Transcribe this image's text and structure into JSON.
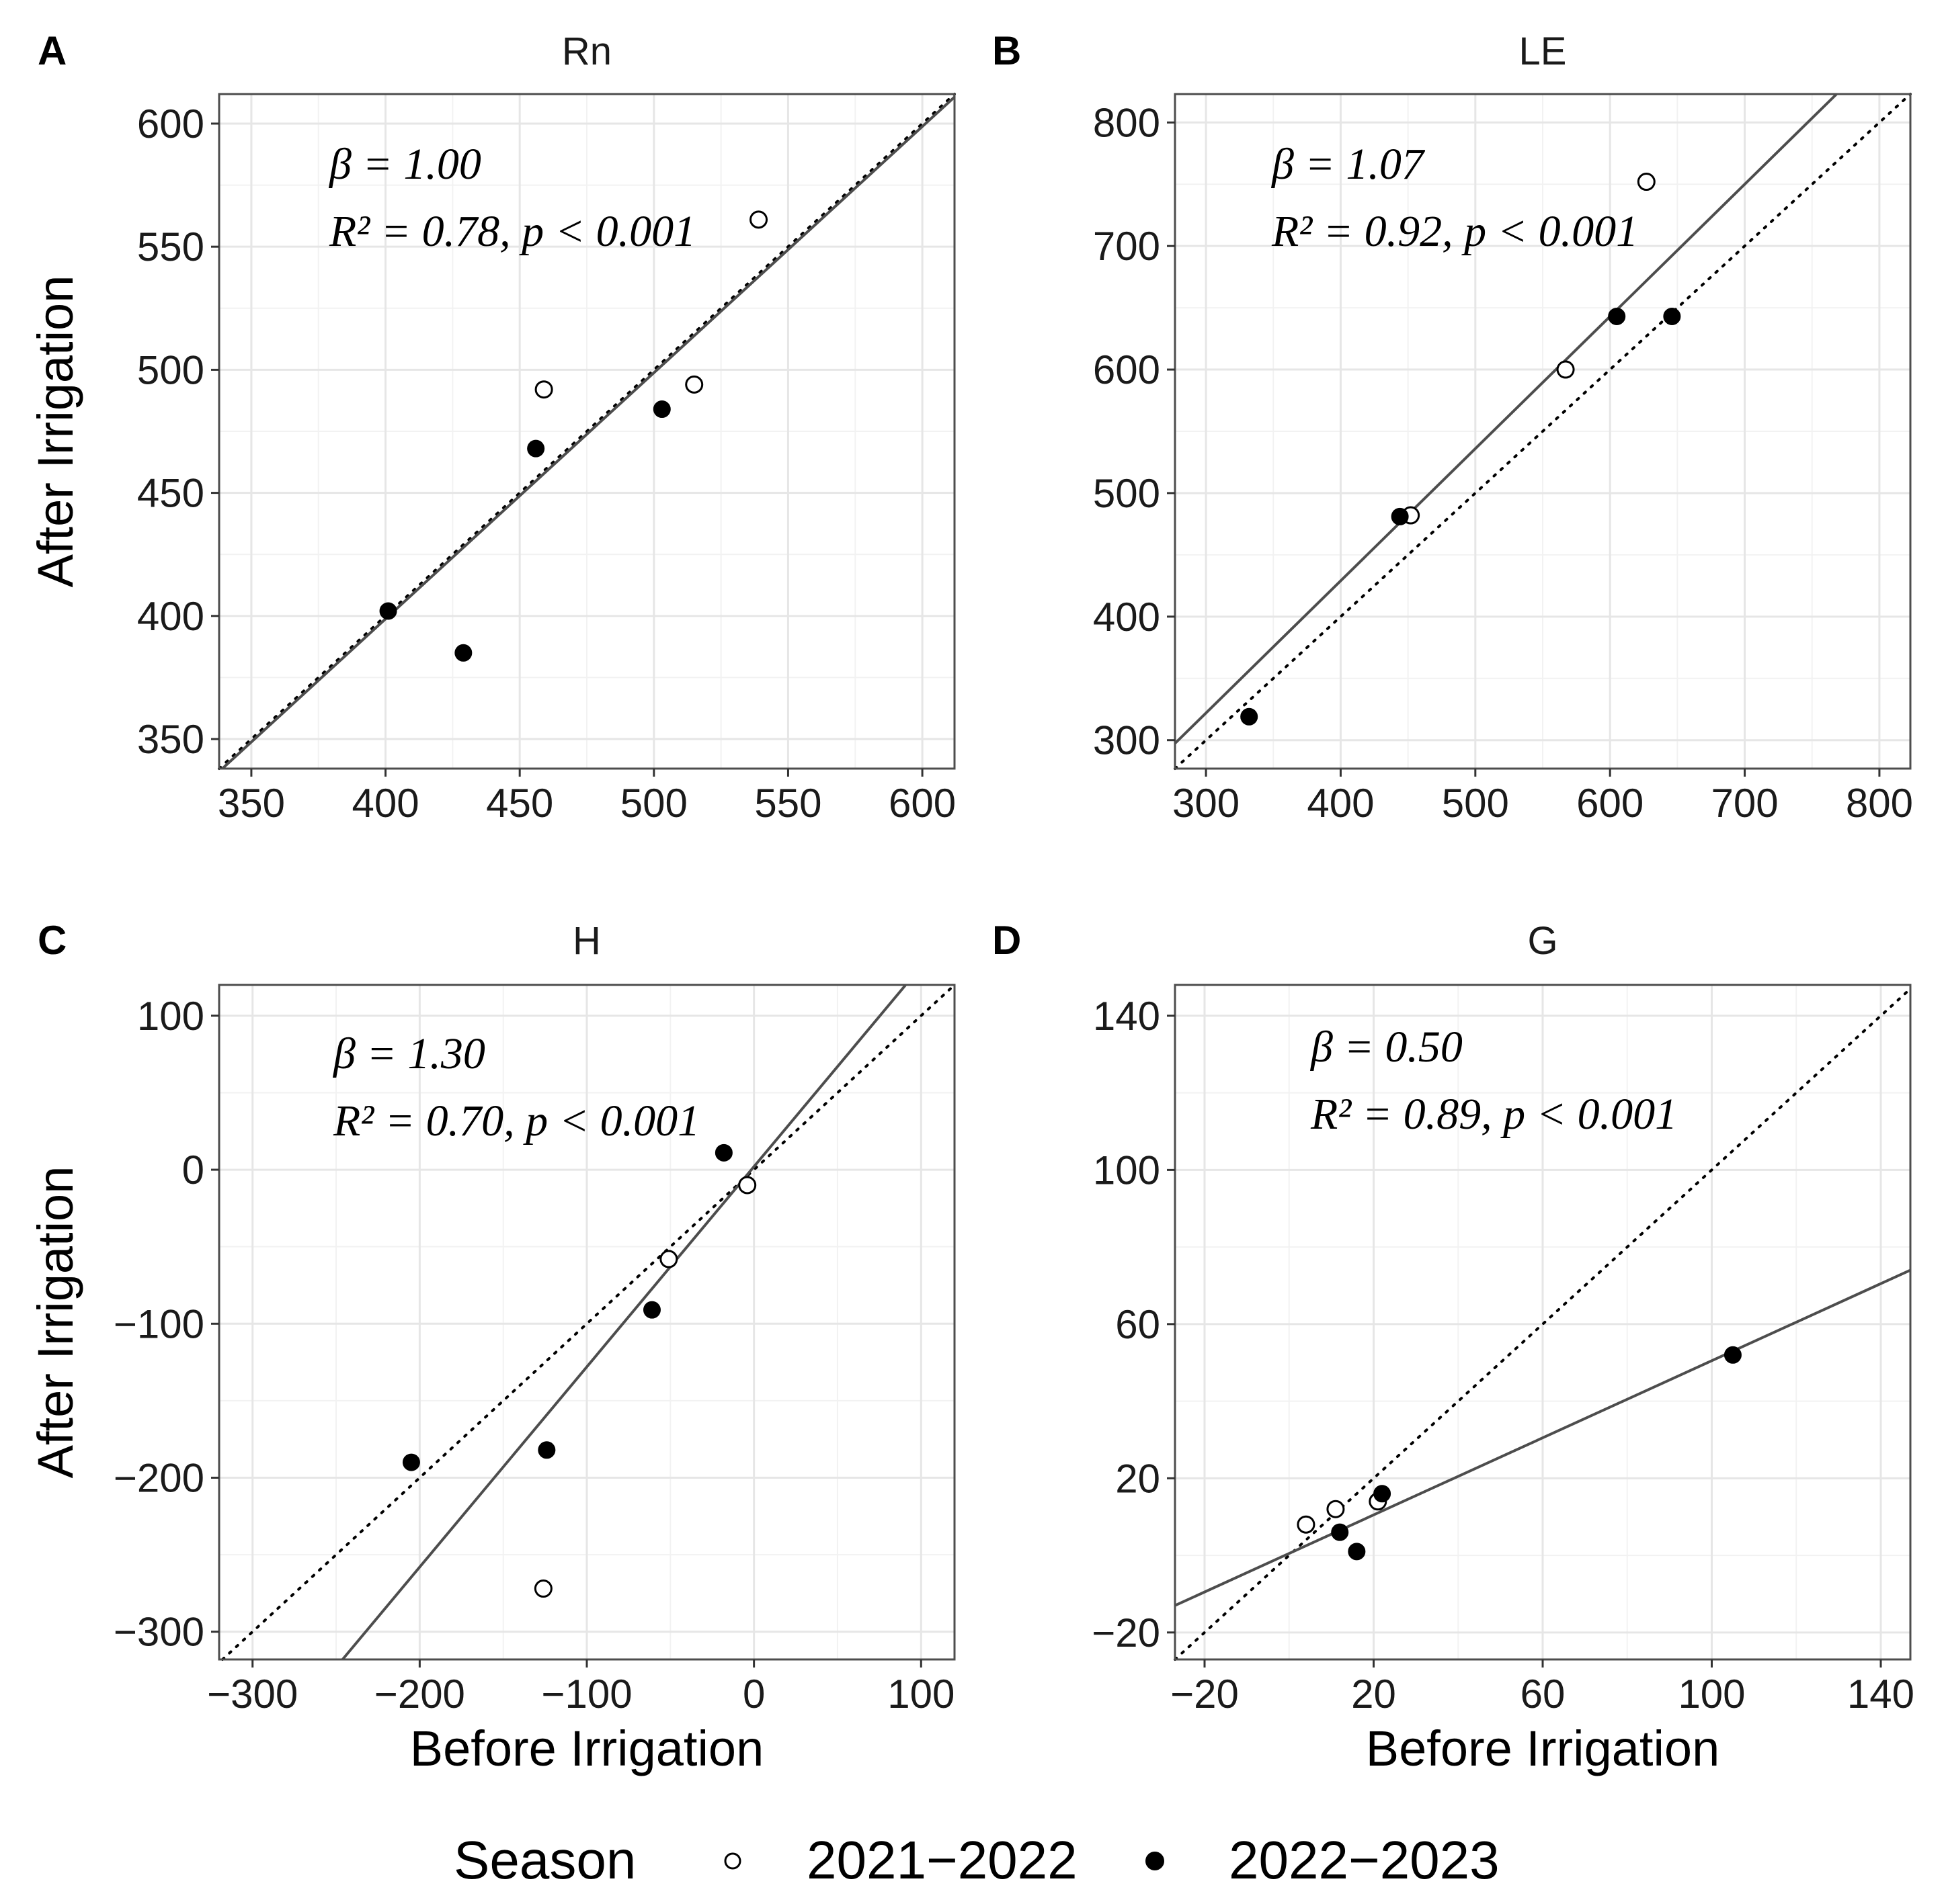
{
  "figure": {
    "xlabel": "Before Irrigation",
    "ylabel": "After Irrigation",
    "legend": {
      "title": "Season",
      "entries": [
        {
          "label": "2021−2022",
          "marker": "open-circle"
        },
        {
          "label": "2022−2023",
          "marker": "filled-circle"
        }
      ],
      "position": "bottom"
    },
    "colors": {
      "fit_line": "#4d4d4d",
      "identity_line": "#000000",
      "grid_major": "#e6e6e6",
      "grid_minor": "#f2f2f2",
      "border": "#4d4d4d"
    }
  },
  "chart_data": [
    {
      "type": "scatter",
      "panel": "A",
      "title": "Rn",
      "xlim": [
        338,
        612
      ],
      "ylim": [
        338,
        612
      ],
      "ticks": [
        350,
        400,
        450,
        500,
        550,
        600
      ],
      "tick_labels": [
        "350",
        "400",
        "450",
        "500",
        "550",
        "600"
      ],
      "annotation": {
        "beta": "β = 1.00",
        "stats": "R² = 0.78, p < 0.001"
      },
      "fit": {
        "slope": 1.0,
        "intercept": -1.2
      },
      "series": [
        {
          "name": "2021−2022",
          "marker": "open",
          "points": [
            [
              459,
              492
            ],
            [
              515,
              494
            ],
            [
              539,
              561
            ]
          ]
        },
        {
          "name": "2022−2023",
          "marker": "filled",
          "points": [
            [
              401,
              402
            ],
            [
              429,
              385
            ],
            [
              456,
              468
            ],
            [
              503,
              484
            ]
          ]
        }
      ]
    },
    {
      "type": "scatter",
      "panel": "B",
      "title": "LE",
      "xlim": [
        277,
        823
      ],
      "ylim": [
        277,
        823
      ],
      "ticks": [
        300,
        400,
        500,
        600,
        700,
        800
      ],
      "tick_labels": [
        "300",
        "400",
        "500",
        "600",
        "700",
        "800"
      ],
      "annotation": {
        "beta": "β = 1.07",
        "stats": "R² = 0.92, p < 0.001"
      },
      "fit": {
        "slope": 1.07,
        "intercept": 1
      },
      "series": [
        {
          "name": "2021−2022",
          "marker": "open",
          "points": [
            [
              452,
              482
            ],
            [
              567,
              600
            ],
            [
              627,
              752
            ]
          ]
        },
        {
          "name": "2022−2023",
          "marker": "filled",
          "points": [
            [
              332,
              319
            ],
            [
              444,
              481
            ],
            [
              605,
              643
            ],
            [
              646,
              643
            ]
          ]
        }
      ]
    },
    {
      "type": "scatter",
      "panel": "C",
      "title": "H",
      "xlim": [
        -320,
        120
      ],
      "ylim": [
        -318,
        120
      ],
      "ticks": [
        -300,
        -200,
        -100,
        0,
        100
      ],
      "tick_labels": [
        "−300",
        "−200",
        "−100",
        "0",
        "100"
      ],
      "annotation": {
        "beta": "β = 1.30",
        "stats": "R² = 0.70, p < 0.001"
      },
      "fit": {
        "slope": 1.3,
        "intercept": 2
      },
      "series": [
        {
          "name": "2021−2022",
          "marker": "open",
          "points": [
            [
              -126,
              -272
            ],
            [
              -51,
              -58
            ],
            [
              -4,
              -10
            ]
          ]
        },
        {
          "name": "2022−2023",
          "marker": "filled",
          "points": [
            [
              -205,
              -190
            ],
            [
              -124,
              -182
            ],
            [
              -61,
              -91
            ],
            [
              -18,
              11
            ]
          ]
        }
      ]
    },
    {
      "type": "scatter",
      "panel": "D",
      "title": "G",
      "xlim": [
        -27,
        147
      ],
      "ylim": [
        -27,
        148
      ],
      "ticks": [
        -20,
        20,
        60,
        100,
        140
      ],
      "tick_labels": [
        "−20",
        "20",
        "60",
        "100",
        "140"
      ],
      "annotation": {
        "beta": "β = 0.50",
        "stats": "R² = 0.89, p < 0.001"
      },
      "fit": {
        "slope": 0.5,
        "intercept": 0.5
      },
      "series": [
        {
          "name": "2021−2022",
          "marker": "open",
          "points": [
            [
              4,
              8
            ],
            [
              11,
              12
            ],
            [
              21,
              14
            ]
          ]
        },
        {
          "name": "2022−2023",
          "marker": "filled",
          "points": [
            [
              12,
              6
            ],
            [
              16,
              1
            ],
            [
              22,
              16
            ],
            [
              105,
              52
            ]
          ]
        }
      ]
    }
  ]
}
